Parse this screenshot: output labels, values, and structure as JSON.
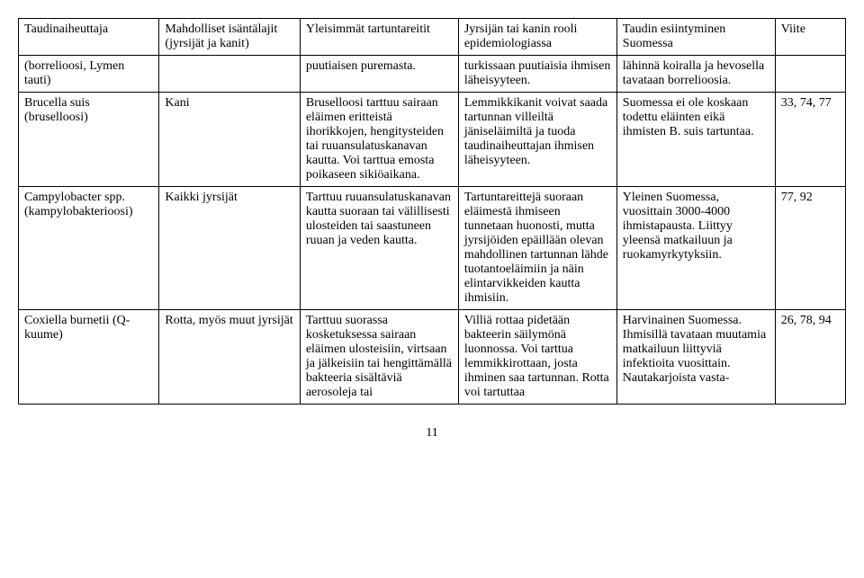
{
  "table": {
    "columns": [
      "Taudinaiheuttaja",
      "Mahdolliset isäntälajit (jyrsijät ja kanit)",
      "Yleisimmät tartuntareitit",
      "Jyrsijän tai kanin rooli epidemiologiassa",
      "Taudin esiintyminen Suomessa",
      "Viite"
    ],
    "rows": [
      {
        "cells": [
          "(borrelioosi, Lymen tauti)",
          "",
          "puutiaisen puremasta.",
          "turkissaan puutiaisia ihmisen läheisyyteen.",
          "lähinnä koiralla ja hevosella tavataan borrelioosia.",
          ""
        ]
      },
      {
        "cells": [
          "Brucella suis (bruselloosi)",
          "Kani",
          "Bruselloosi tarttuu sairaan eläimen eritteistä ihorikkojen, hengitysteiden tai ruuansulatuskanavan kautta. Voi tarttua emosta poikaseen sikiöaikana.",
          "Lemmikkikanit voivat saada tartunnan villeiltä jäniseläimiltä ja tuoda taudinaiheuttajan ihmisen läheisyyteen.",
          "Suomessa ei ole koskaan todettu eläinten eikä ihmisten B. suis tartuntaa.",
          "33, 74, 77"
        ]
      },
      {
        "cells": [
          "Campylobacter spp. (kampylobakterioosi)",
          "Kaikki jyrsijät",
          "Tarttuu ruuansulatuskanavan kautta suoraan tai välillisesti ulosteiden tai saastuneen ruuan ja veden kautta.",
          "Tartuntareittejä suoraan eläimestä ihmiseen tunnetaan huonosti, mutta jyrsijöiden epäillään olevan mahdollinen tartunnan lähde tuotantoeläimiin ja näin elintarvikkeiden kautta ihmisiin.",
          "Yleinen Suomessa, vuosittain 3000-4000 ihmistapausta. Liittyy yleensä matkailuun ja ruokamyrkytyksiin.",
          "77, 92"
        ]
      },
      {
        "cells": [
          "Coxiella burnetii (Q-kuume)",
          "Rotta, myös muut jyrsijät",
          "Tarttuu suorassa kosketuksessa sairaan eläimen ulosteisiin, virtsaan ja jälkeisiin tai hengittämällä bakteeria sisältäviä aerosoleja tai",
          "Villiä rottaa pidetään bakteerin säilymönä luonnossa. Voi tarttua lemmikkirottaan, josta ihminen saa tartunnan. Rotta voi tartuttaa",
          "Harvinainen Suomessa. Ihmisillä tavataan muutamia matkailuun liittyviä infektioita vuosittain. Nautakarjoista vasta-",
          "26, 78, 94"
        ]
      }
    ]
  },
  "page_number": "11"
}
